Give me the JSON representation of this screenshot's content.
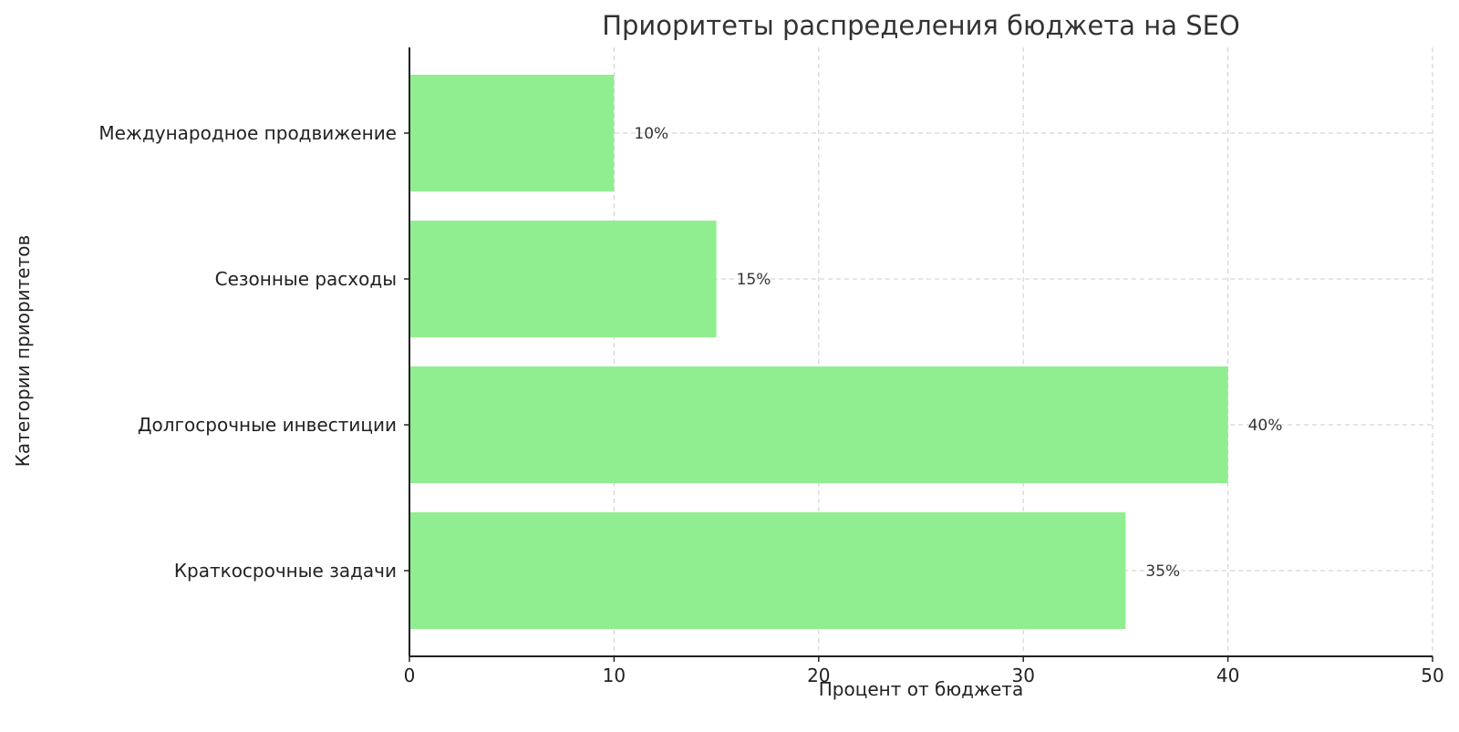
{
  "chart_data": {
    "type": "bar",
    "orientation": "horizontal",
    "title": "Приоритеты распределения бюджета на SEO",
    "xlabel": "Процент от бюджета",
    "ylabel": "Категории приоритетов",
    "categories": [
      "Краткосрочные задачи",
      "Долгосрочные инвестиции",
      "Сезонные расходы",
      "Международное продвижение"
    ],
    "values": [
      35,
      40,
      15,
      10
    ],
    "data_labels": [
      "35%",
      "40%",
      "15%",
      "10%"
    ],
    "xlim": [
      0,
      50
    ],
    "xticks": [
      "0",
      "10",
      "20",
      "30",
      "40",
      "50"
    ],
    "grid": true,
    "bar_color": "#90ee90"
  }
}
